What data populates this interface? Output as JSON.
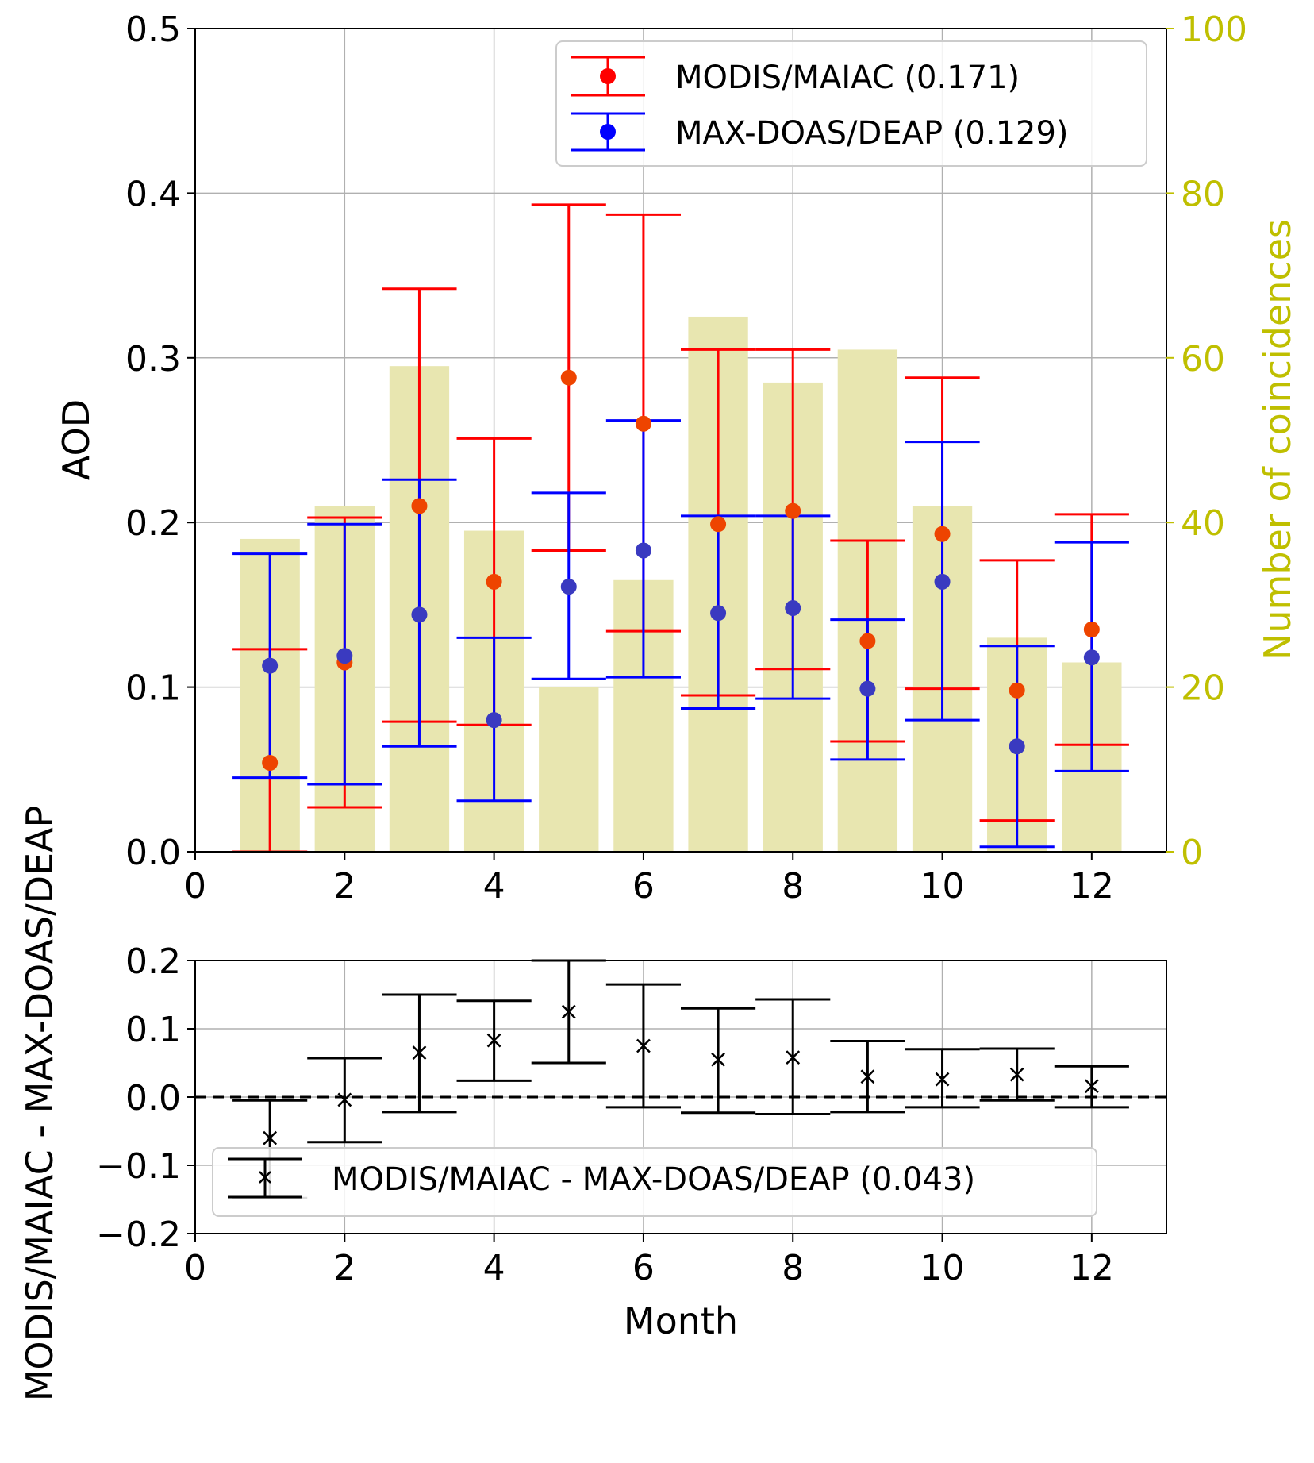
{
  "chart_data": [
    {
      "type": "bar+errorbar",
      "title": "",
      "xlabel": "",
      "ylabel": "AOD",
      "ylabel_right": "Number of coincidences",
      "xlim": [
        0,
        13
      ],
      "ylim": [
        0,
        0.5
      ],
      "ylim_right": [
        0,
        100
      ],
      "xticks": [
        "0",
        "2",
        "4",
        "6",
        "8",
        "10",
        "12"
      ],
      "yticks": [
        "0.0",
        "0.1",
        "0.2",
        "0.3",
        "0.4",
        "0.5"
      ],
      "yticks_right": [
        "0",
        "20",
        "40",
        "60",
        "80",
        "100"
      ],
      "grid": true,
      "legend_position": "top-right",
      "months": [
        1,
        2,
        3,
        4,
        5,
        6,
        7,
        8,
        9,
        10,
        11,
        12
      ],
      "coincidences": [
        38,
        42,
        59,
        39,
        20,
        33,
        65,
        57,
        61,
        42,
        26,
        23
      ],
      "series": [
        {
          "name": "MODIS/MAIAC (0.171)",
          "color": "#ff0000",
          "marker_color": "#ee4400",
          "values": [
            0.054,
            0.115,
            0.21,
            0.164,
            0.288,
            0.26,
            0.199,
            0.207,
            0.128,
            0.193,
            0.098,
            0.135
          ],
          "err_low": [
            0.0,
            0.027,
            0.079,
            0.077,
            0.183,
            0.134,
            0.095,
            0.111,
            0.067,
            0.099,
            0.019,
            0.065
          ],
          "err_high": [
            0.123,
            0.203,
            0.342,
            0.251,
            0.393,
            0.387,
            0.305,
            0.305,
            0.189,
            0.288,
            0.177,
            0.205
          ]
        },
        {
          "name": "MAX-DOAS/DEAP (0.129)",
          "color": "#0000ff",
          "marker_color": "#3a3ac0",
          "values": [
            0.113,
            0.119,
            0.144,
            0.08,
            0.161,
            0.183,
            0.145,
            0.148,
            0.099,
            0.164,
            0.064,
            0.118
          ],
          "err_low": [
            0.045,
            0.041,
            0.064,
            0.031,
            0.105,
            0.106,
            0.087,
            0.093,
            0.056,
            0.08,
            0.003,
            0.049
          ],
          "err_high": [
            0.181,
            0.199,
            0.226,
            0.13,
            0.218,
            0.262,
            0.204,
            0.204,
            0.141,
            0.249,
            0.125,
            0.188
          ]
        }
      ]
    },
    {
      "type": "errorbar",
      "title": "",
      "xlabel": "Month",
      "ylabel": "MODIS/MAIAC - MAX-DOAS/DEAP",
      "xlim": [
        0,
        13
      ],
      "ylim": [
        -0.2,
        0.2
      ],
      "xticks": [
        "0",
        "2",
        "4",
        "6",
        "8",
        "10",
        "12"
      ],
      "yticks": [
        "−0.2",
        "−0.1",
        "0.0",
        "0.1",
        "0.2"
      ],
      "grid": true,
      "reference_line": 0.0,
      "legend_position": "bottom-left",
      "series": [
        {
          "name": "MODIS/MAIAC - MAX-DOAS/DEAP (0.043)",
          "color": "#000000",
          "marker": "x",
          "months": [
            1,
            2,
            3,
            4,
            5,
            6,
            7,
            8,
            9,
            10,
            11,
            12
          ],
          "values": [
            -0.06,
            -0.004,
            0.065,
            0.083,
            0.125,
            0.075,
            0.055,
            0.058,
            0.03,
            0.026,
            0.033,
            0.016
          ],
          "err_low": [
            -0.148,
            -0.066,
            -0.022,
            0.024,
            0.05,
            -0.015,
            -0.023,
            -0.025,
            -0.022,
            -0.015,
            -0.005,
            -0.015
          ],
          "err_high": [
            -0.005,
            0.057,
            0.15,
            0.141,
            0.2,
            0.165,
            0.13,
            0.143,
            0.082,
            0.07,
            0.071,
            0.045
          ]
        }
      ]
    }
  ]
}
